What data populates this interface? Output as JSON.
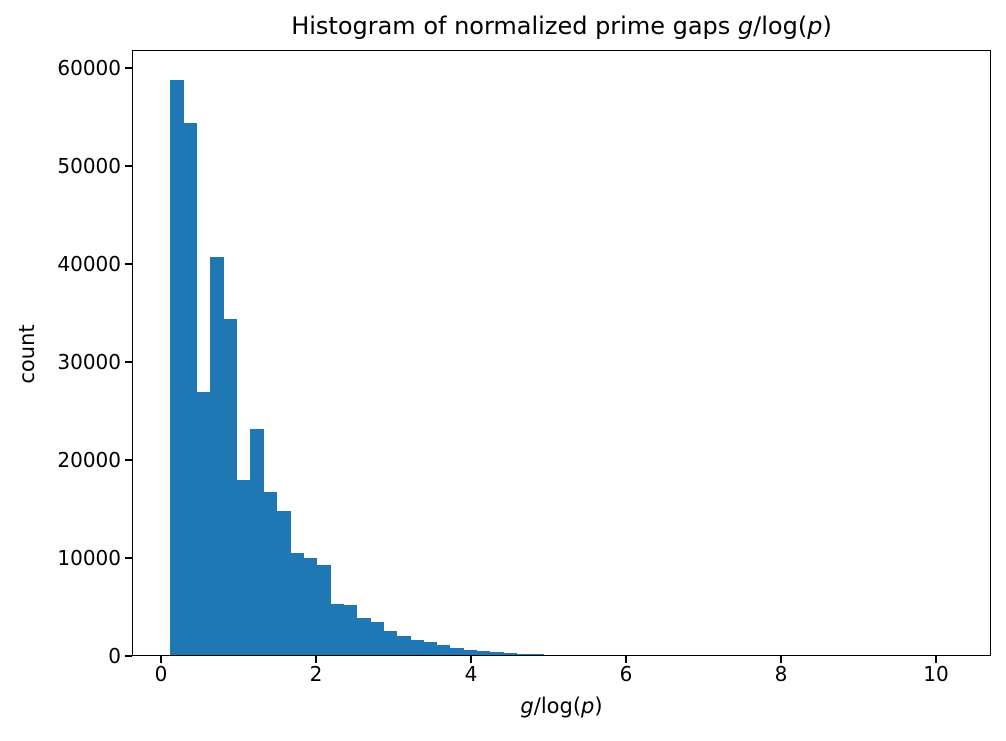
{
  "figure": {
    "background": "#ffffff",
    "text_color": "#000000"
  },
  "chart_data": {
    "type": "bar",
    "subtype": "histogram",
    "title": "Histogram of normalized prime gaps g/log(p)",
    "title_parts": [
      {
        "t": "Histogram of normalized prime gaps ",
        "i": false
      },
      {
        "t": "g",
        "i": true
      },
      {
        "t": "/log(",
        "i": false
      },
      {
        "t": "p",
        "i": true
      },
      {
        "t": ")",
        "i": false
      }
    ],
    "xlabel": "g/log(p)",
    "xlabel_parts": [
      {
        "t": "g",
        "i": true
      },
      {
        "t": "/log(",
        "i": false
      },
      {
        "t": "p",
        "i": true
      },
      {
        "t": ")",
        "i": false
      }
    ],
    "ylabel": "count",
    "bar_color": "#1f77b4",
    "bin_start": 0.116,
    "bin_width": 0.172,
    "counts": [
      58800,
      54400,
      26900,
      40700,
      34400,
      18000,
      23200,
      16700,
      14800,
      10500,
      10000,
      9300,
      5300,
      5200,
      3900,
      3450,
      2600,
      2000,
      1650,
      1400,
      1100,
      850,
      650,
      500,
      400,
      330,
      230,
      160,
      130,
      150
    ],
    "xticks": [
      0,
      2,
      4,
      6,
      8,
      10
    ],
    "yticks": [
      0,
      10000,
      20000,
      30000,
      40000,
      50000,
      60000
    ],
    "xlim": [
      -0.374,
      10.71
    ],
    "ylim": [
      0,
      61850
    ],
    "grid": false,
    "legend": null
  }
}
